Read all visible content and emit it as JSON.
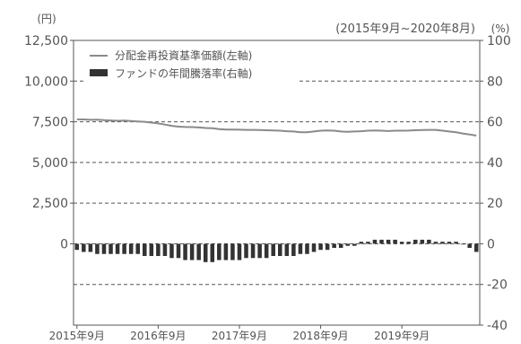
{
  "chart_data": {
    "type": "bar+line",
    "subtitle": "(2015年9月~2020年8月)",
    "left_axis_unit": "(円)",
    "right_axis_unit": "(%)",
    "left_axis": {
      "min": -5000,
      "max": 12500,
      "ticks": [
        12500,
        10000,
        7500,
        5000,
        2500,
        0
      ],
      "tick_labels": [
        "12,500",
        "10,000",
        "7,500",
        "5,000",
        "2,500",
        "0"
      ]
    },
    "right_axis": {
      "min": -40,
      "max": 100,
      "ticks": [
        100,
        80,
        60,
        40,
        20,
        0,
        -20,
        -40
      ],
      "tick_labels": [
        "100",
        "80",
        "60",
        "40",
        "20",
        "0",
        "-20",
        "-40"
      ]
    },
    "gridlines_dashed": true,
    "x_tick_labels": [
      "2015年9月",
      "2016年9月",
      "2017年9月",
      "2018年9月",
      "2019年9月"
    ],
    "legend_position": "top-left",
    "legend": [
      {
        "label": "分配金再投資基準価額(左軸)",
        "kind": "line"
      },
      {
        "label": "ファンドの年間騰落率(右軸)",
        "kind": "bar"
      }
    ],
    "series": [
      {
        "name": "分配金再投資基準価額(左軸)",
        "axis": "left",
        "kind": "line",
        "start": "2015-09",
        "values": [
          7650,
          7640,
          7620,
          7630,
          7600,
          7580,
          7560,
          7570,
          7550,
          7520,
          7500,
          7450,
          7400,
          7330,
          7250,
          7200,
          7180,
          7170,
          7150,
          7120,
          7100,
          7050,
          7020,
          7020,
          7010,
          7000,
          7000,
          6990,
          6980,
          6970,
          6950,
          6920,
          6900,
          6850,
          6850,
          6900,
          6950,
          6970,
          6950,
          6900,
          6880,
          6900,
          6920,
          6950,
          6970,
          6950,
          6930,
          6950,
          6950,
          6960,
          6980,
          6990,
          7000,
          7000,
          6950,
          6900,
          6850,
          6780,
          6720,
          6650
        ]
      },
      {
        "name": "ファンドの年間騰落率(右軸)",
        "axis": "right",
        "kind": "bar",
        "start": "2015-09",
        "values": [
          -3,
          -4,
          -4,
          -5,
          -5,
          -5,
          -5,
          -5,
          -5,
          -5,
          -6,
          -6,
          -6,
          -6,
          -7,
          -7,
          -8,
          -8,
          -8,
          -9,
          -9,
          -8,
          -8,
          -8,
          -8,
          -7,
          -7,
          -7,
          -7,
          -6,
          -6,
          -6,
          -6,
          -5,
          -5,
          -4,
          -3,
          -3,
          -2,
          -2,
          -1,
          -1,
          1,
          1,
          2,
          2,
          2,
          2,
          1,
          1,
          2,
          2,
          2,
          1,
          1,
          1,
          1,
          0,
          -2,
          -4
        ]
      }
    ]
  }
}
